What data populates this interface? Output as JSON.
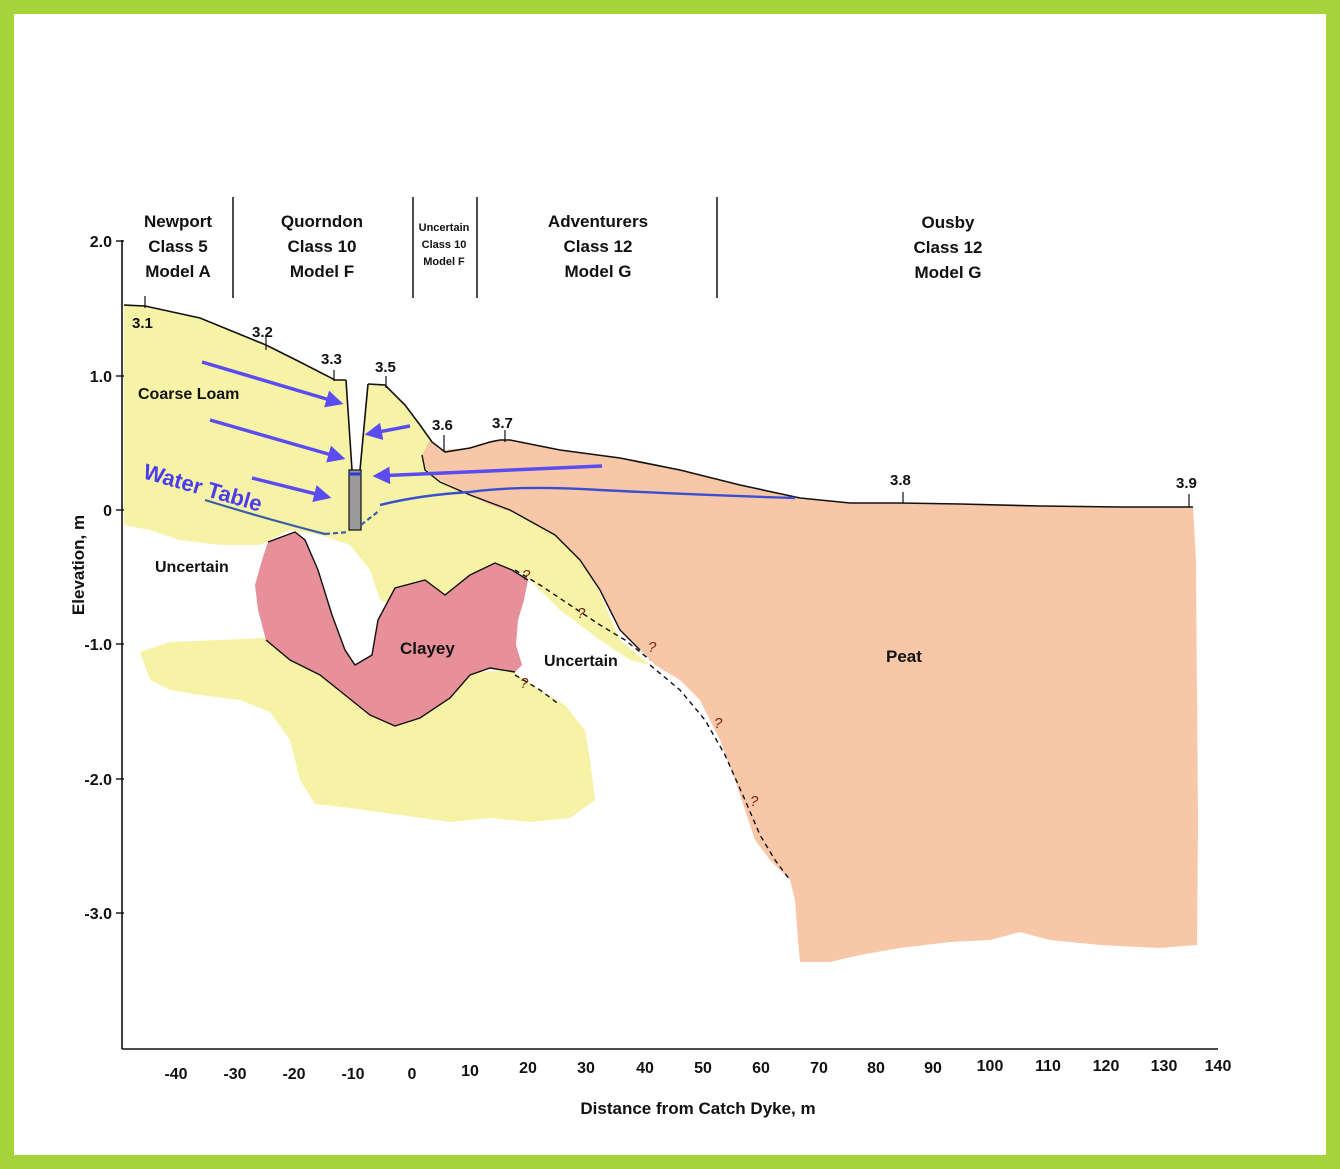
{
  "colors": {
    "border": "#a6d33a",
    "coarse_loam": "#f6f3a6",
    "clayey": "#e8909a",
    "peat": "#f8c7a8",
    "arrow": "#5a4cf0",
    "water_table_line": "#3a4fcf",
    "water_table_label": "#4b3cf0"
  },
  "units": [
    {
      "id": "newport",
      "lines": [
        "Newport",
        "Class 5",
        "Model A"
      ]
    },
    {
      "id": "quorndon",
      "lines": [
        "Quorndon",
        "Class 10",
        "Model F"
      ]
    },
    {
      "id": "uncertain",
      "lines": [
        "Uncertain",
        "Class 10",
        "Model F"
      ]
    },
    {
      "id": "adventurers",
      "lines": [
        "Adventurers",
        "Class 12",
        "Model G"
      ]
    },
    {
      "id": "ousby",
      "lines": [
        "Ousby",
        "Class 12",
        "Model G"
      ]
    }
  ],
  "stations": [
    "3.1",
    "3.2",
    "3.3",
    "3.5",
    "3.6",
    "3.7",
    "3.8",
    "3.9"
  ],
  "materials": {
    "coarse_loam": "Coarse Loam",
    "clayey": "Clayey",
    "peat": "Peat",
    "uncertain": "Uncertain",
    "water_table": "Water Table",
    "question": "?"
  },
  "axes": {
    "y_label": "Elevation, m",
    "x_label": "Distance from Catch Dyke, m",
    "y_ticks": [
      "2.0",
      "1.0",
      "0",
      "-1.0",
      "-2.0",
      "-3.0"
    ],
    "x_ticks": [
      "-40",
      "-30",
      "-20",
      "-10",
      "0",
      "10",
      "20",
      "30",
      "40",
      "50",
      "60",
      "70",
      "80",
      "90",
      "100",
      "110",
      "120",
      "130",
      "140"
    ]
  }
}
